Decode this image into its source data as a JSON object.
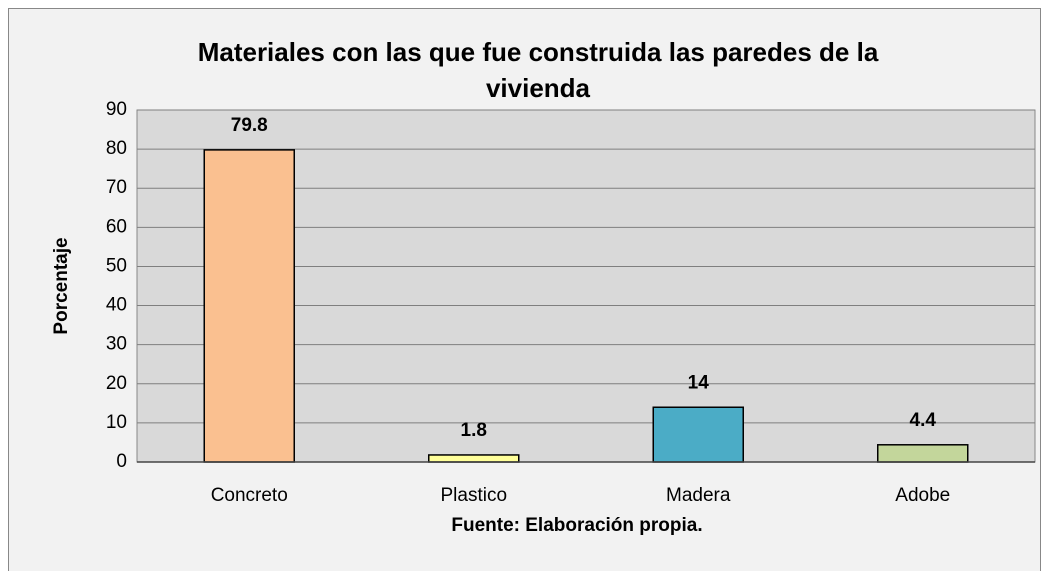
{
  "chart_data": {
    "type": "bar",
    "title": "Materiales con las que fue construida las paredes de la vivienda",
    "xlabel": "Fuente: Elaboración propia.",
    "ylabel": "Porcentaje",
    "categories": [
      "Concreto",
      "Plastico",
      "Madera",
      "Adobe"
    ],
    "values": [
      79.8,
      1.8,
      14,
      4.4
    ],
    "colors": [
      "#fac090",
      "#ffff99",
      "#4bacc6",
      "#c3d69b"
    ],
    "ylim": [
      0,
      90
    ],
    "yticks": [
      0,
      10,
      20,
      30,
      40,
      50,
      60,
      70,
      80,
      90
    ],
    "grid": true
  }
}
